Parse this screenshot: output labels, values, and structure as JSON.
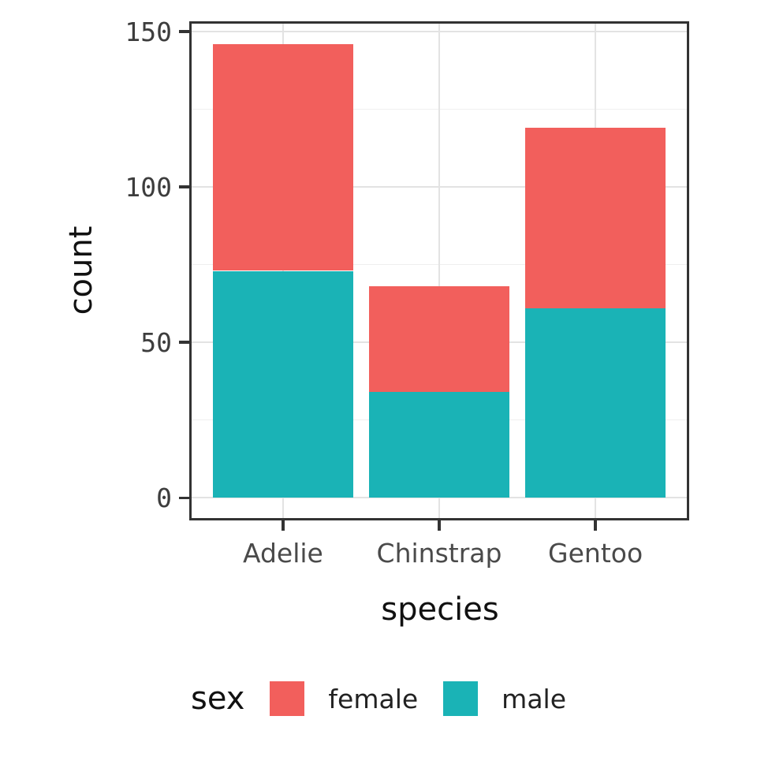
{
  "chart_data": {
    "type": "bar",
    "stacked": true,
    "title": "",
    "xlabel": "species",
    "ylabel": "count",
    "categories": [
      "Adelie",
      "Chinstrap",
      "Gentoo"
    ],
    "series": [
      {
        "name": "female",
        "color": "#F25F5C",
        "values": [
          73,
          34,
          58
        ]
      },
      {
        "name": "male",
        "color": "#1AB3B6",
        "values": [
          73,
          34,
          61
        ]
      }
    ],
    "totals": [
      146,
      68,
      119
    ],
    "stack_order_bottom_to_top": [
      "male",
      "female"
    ],
    "legend": {
      "title": "sex",
      "position": "bottom",
      "entries": [
        "female",
        "male"
      ]
    },
    "y_axis": {
      "major_ticks": [
        0,
        50,
        100,
        150
      ],
      "major_tick_labels": [
        "0",
        "50",
        "100",
        "150"
      ],
      "minor_ticks": [
        25,
        75,
        125
      ],
      "display_min": -7.3,
      "display_max": 153.3
    },
    "x_axis": {
      "tick_labels": [
        "Adelie",
        "Chinstrap",
        "Gentoo"
      ]
    },
    "grid": true,
    "colors": {
      "panel_border": "#333333",
      "grid_major": "#E3E3E3",
      "grid_minor": "#EFEFEF",
      "tick_mark": "#333333",
      "tick_text": "#3D3D3D",
      "axis_title_text": "#111111"
    }
  }
}
